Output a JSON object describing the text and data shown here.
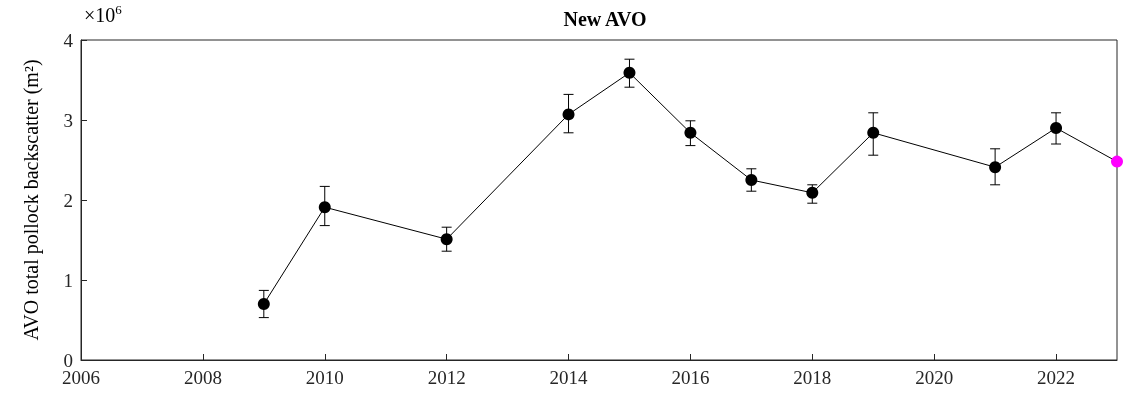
{
  "chart_data": {
    "type": "line",
    "title": "New AVO",
    "ylabel": "AVO total pollock backscatter (m²)",
    "annotations": [
      "×10$^{6}$"
    ],
    "x": [
      2009,
      2010,
      2012,
      2014,
      2015,
      2016,
      2017,
      2018,
      2019,
      2021,
      2022,
      2023
    ],
    "series": [
      {
        "color": "#000000",
        "colors": [
          "#000000",
          "#000000",
          "#000000",
          "#000000",
          "#000000",
          "#000000",
          "#000000",
          "#000000",
          "#000000",
          "#000000",
          "#000000",
          "#ff00ff"
        ],
        "values": [
          0.7,
          1.91,
          1.51,
          3.07,
          3.59,
          2.84,
          2.25,
          2.09,
          2.84,
          2.41,
          2.9,
          2.48
        ],
        "errors": [
          [
            0.53,
            0.87
          ],
          [
            1.68,
            2.17
          ],
          [
            1.36,
            1.66
          ],
          [
            2.84,
            3.32
          ],
          [
            3.41,
            3.76
          ],
          [
            2.68,
            2.99
          ],
          [
            2.11,
            2.39
          ],
          [
            1.96,
            2.19
          ],
          [
            2.56,
            3.09
          ],
          [
            2.19,
            2.64
          ],
          [
            2.7,
            3.09
          ],
          null
        ]
      }
    ],
    "xlim": [
      2006,
      2023
    ],
    "xticks": [
      2006,
      2008,
      2010,
      2012,
      2014,
      2016,
      2018,
      2020,
      2022
    ],
    "ylim": [
      0,
      4
    ],
    "yticks": [
      0,
      1,
      2,
      3,
      4
    ],
    "grid": false,
    "marker": "circle",
    "line_style": "solid"
  }
}
